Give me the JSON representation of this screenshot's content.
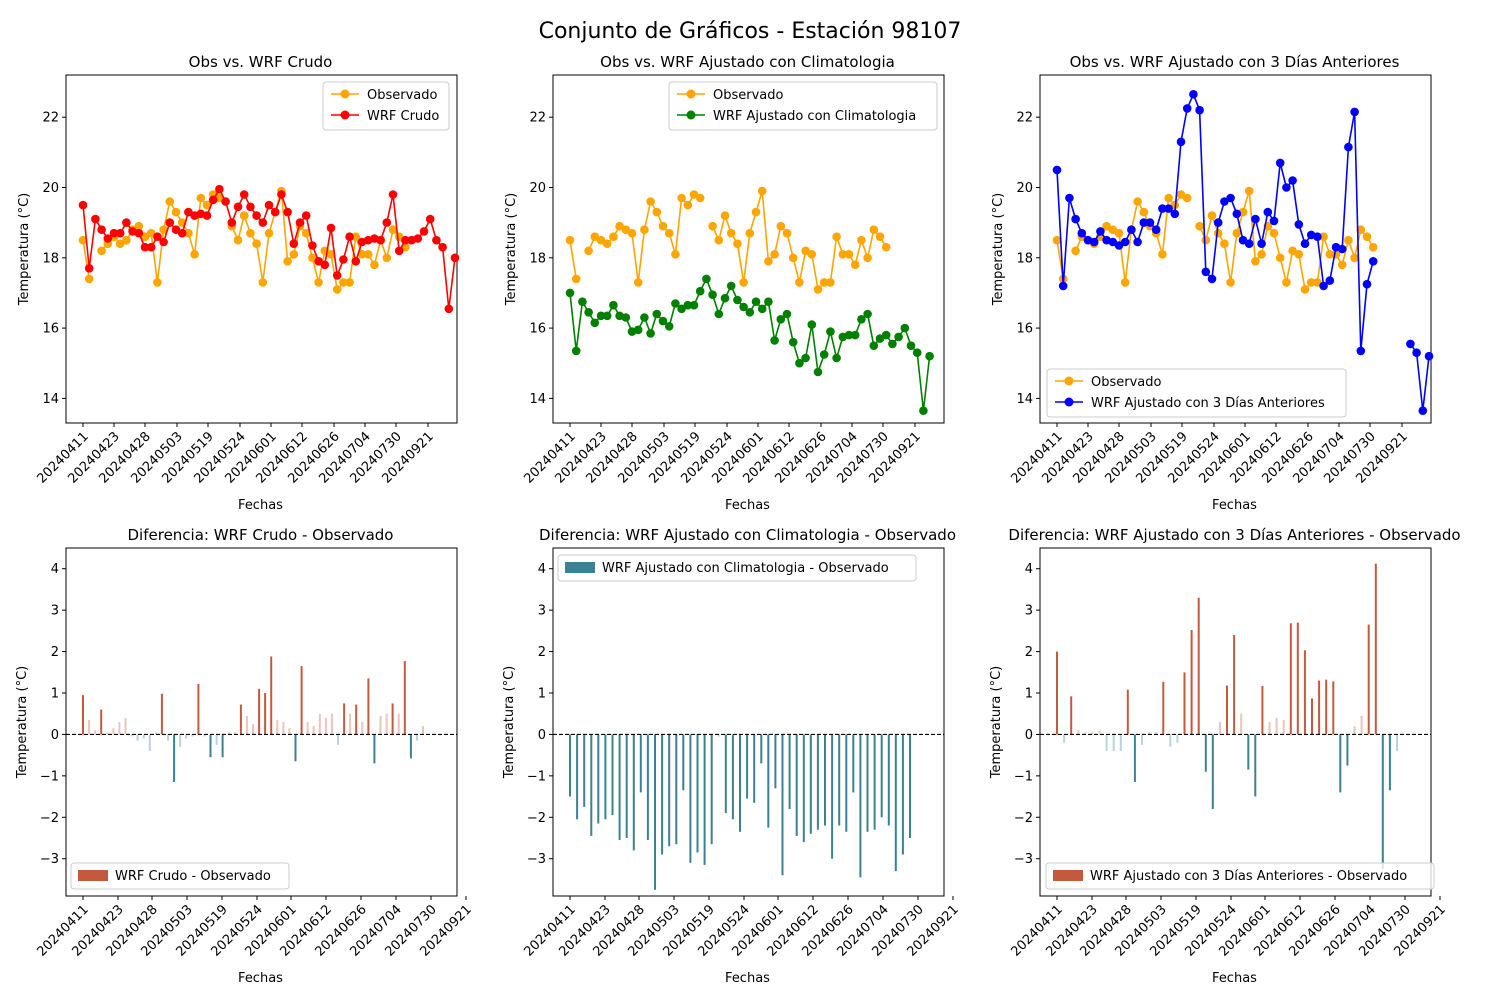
{
  "suptitle": "Conjunto de Gráficos - Estación 98107",
  "date_ticks": [
    "20240411",
    "20240423",
    "20240428",
    "20240503",
    "20240519",
    "20240524",
    "20240601",
    "20240612",
    "20240626",
    "20240704",
    "20240730",
    "20240921"
  ],
  "colors": {
    "observado": "#ffa500",
    "wrf_crudo": "#ff0000",
    "wrf_clim": "#008000",
    "wrf_3d": "#0000ff",
    "bar_neg": "#3b8195",
    "bar_pos": "#c45a3d",
    "zero_line": "#000000"
  },
  "chart_data": [
    {
      "type": "line",
      "title": "Obs vs. WRF Crudo",
      "xlabel": "Fechas",
      "ylabel": "Temperatura (°C)",
      "ylim": [
        13.3,
        23.2
      ],
      "yticks": [
        14,
        16,
        18,
        20,
        22
      ],
      "legend_position": "top-right",
      "series": [
        {
          "name": "Observado",
          "color": "#ffa500",
          "values": [
            18.5,
            17.4,
            null,
            18.2,
            18.4,
            18.6,
            18.4,
            18.5,
            18.8,
            18.9,
            18.6,
            18.7,
            17.3,
            18.8,
            19.6,
            19.3,
            19.0,
            18.7,
            18.1,
            19.7,
            19.5,
            19.8,
            19.7,
            null,
            18.9,
            18.5,
            19.2,
            18.7,
            18.4,
            17.3,
            18.7,
            19.3,
            19.9,
            17.9,
            18.1,
            18.9,
            18.7,
            18.0,
            17.3,
            18.2,
            18.1,
            17.1,
            17.3,
            17.3,
            18.6,
            18.1,
            18.1,
            17.8,
            18.5,
            18.0,
            18.8,
            18.6,
            18.3,
            null,
            null,
            null,
            null,
            null,
            null,
            null
          ]
        },
        {
          "name": "WRF Crudo",
          "color": "#ff0000",
          "values": [
            19.5,
            17.7,
            19.1,
            18.8,
            18.55,
            18.7,
            18.7,
            19.0,
            18.75,
            18.7,
            18.3,
            18.3,
            18.6,
            18.45,
            19.0,
            18.8,
            18.7,
            19.3,
            19.2,
            19.25,
            19.2,
            19.65,
            19.95,
            19.6,
            19.0,
            19.45,
            19.8,
            19.45,
            19.2,
            19.0,
            19.5,
            19.3,
            19.8,
            19.3,
            18.4,
            19.0,
            19.2,
            18.35,
            17.9,
            17.8,
            18.85,
            17.5,
            17.95,
            18.6,
            17.9,
            18.45,
            18.5,
            18.55,
            18.5,
            19.0,
            19.8,
            18.2,
            18.5,
            18.5,
            18.55,
            18.75,
            19.1,
            18.5,
            18.3,
            16.55,
            18.0
          ]
        }
      ]
    },
    {
      "type": "line",
      "title": "Obs vs. WRF Ajustado con Climatologia",
      "xlabel": "Fechas",
      "ylabel": "Temperatura (°C)",
      "ylim": [
        13.3,
        23.2
      ],
      "yticks": [
        14,
        16,
        18,
        20,
        22
      ],
      "legend_position": "top-center",
      "series": [
        {
          "name": "Observado",
          "color": "#ffa500",
          "values": [
            18.5,
            17.4,
            null,
            18.2,
            18.6,
            18.5,
            18.4,
            18.6,
            18.9,
            18.8,
            18.7,
            17.3,
            18.8,
            19.6,
            19.3,
            18.9,
            18.7,
            18.1,
            19.7,
            19.5,
            19.8,
            19.7,
            null,
            18.9,
            18.5,
            19.2,
            18.7,
            18.4,
            17.3,
            18.7,
            19.3,
            19.9,
            17.9,
            18.1,
            18.9,
            18.7,
            18.0,
            17.3,
            18.2,
            18.1,
            17.1,
            17.3,
            17.3,
            18.6,
            18.1,
            18.1,
            17.8,
            18.5,
            18.0,
            18.8,
            18.6,
            18.3,
            null,
            null,
            null,
            null,
            null,
            null,
            null
          ]
        },
        {
          "name": "WRF Ajustado con Climatologia",
          "color": "#008000",
          "values": [
            17.0,
            15.35,
            16.75,
            16.45,
            16.15,
            16.35,
            16.35,
            16.65,
            16.35,
            16.3,
            15.9,
            15.95,
            16.3,
            15.85,
            16.4,
            16.2,
            16.05,
            16.7,
            16.55,
            16.65,
            16.65,
            17.05,
            17.4,
            16.95,
            16.4,
            16.85,
            17.2,
            16.8,
            16.6,
            16.45,
            16.75,
            16.55,
            16.75,
            15.65,
            16.25,
            16.4,
            15.6,
            15.0,
            15.15,
            16.1,
            14.75,
            15.25,
            15.9,
            15.15,
            15.75,
            15.8,
            15.8,
            16.25,
            16.4,
            15.5,
            15.7,
            15.8,
            15.55,
            15.75,
            16.0,
            15.5,
            15.3,
            13.65,
            15.2
          ]
        }
      ]
    },
    {
      "type": "line",
      "title": "Obs vs. WRF Ajustado con 3 Días Anteriores",
      "xlabel": "Fechas",
      "ylabel": "Temperatura (°C)",
      "ylim": [
        13.3,
        23.2
      ],
      "yticks": [
        14,
        16,
        18,
        20,
        22
      ],
      "legend_position": "bottom-left",
      "series": [
        {
          "name": "Observado",
          "color": "#ffa500",
          "values": [
            18.5,
            17.4,
            null,
            18.2,
            18.6,
            18.5,
            18.4,
            18.6,
            18.9,
            18.8,
            18.7,
            17.3,
            18.8,
            19.6,
            19.3,
            18.9,
            18.7,
            18.1,
            19.7,
            19.5,
            19.8,
            19.7,
            null,
            18.9,
            18.5,
            19.2,
            18.7,
            18.4,
            17.3,
            18.7,
            19.3,
            19.9,
            17.9,
            18.1,
            18.9,
            18.7,
            18.0,
            17.3,
            18.2,
            18.1,
            17.1,
            17.3,
            17.3,
            18.6,
            18.1,
            18.1,
            17.8,
            18.5,
            18.0,
            18.8,
            18.6,
            18.3,
            null,
            null,
            null,
            null,
            null,
            null,
            null
          ]
        },
        {
          "name": "WRF Ajustado con 3 Días Anteriores",
          "color": "#0000ff",
          "values": [
            20.5,
            17.2,
            19.7,
            19.1,
            18.7,
            18.5,
            18.45,
            18.75,
            18.5,
            18.45,
            18.35,
            18.45,
            18.8,
            18.45,
            19.0,
            19.0,
            18.8,
            19.4,
            19.4,
            19.25,
            21.3,
            22.25,
            22.65,
            22.2,
            17.6,
            17.4,
            19.0,
            19.6,
            19.7,
            19.25,
            18.5,
            18.4,
            19.1,
            18.4,
            19.3,
            19.05,
            20.7,
            20.0,
            20.2,
            18.95,
            18.4,
            18.65,
            18.6,
            17.2,
            17.35,
            18.3,
            18.25,
            21.15,
            22.15,
            15.35,
            17.25,
            17.9,
            null,
            null,
            null,
            null,
            null,
            15.55,
            15.3,
            13.65,
            15.2
          ]
        }
      ]
    },
    {
      "type": "bar",
      "title": "Diferencia: WRF Crudo - Observado",
      "xlabel": "Fechas",
      "ylabel": "Temperatura (°C)",
      "ylim": [
        -3.9,
        4.5
      ],
      "yticks": [
        -3,
        -2,
        -1,
        0,
        1,
        2,
        3,
        4
      ],
      "legend_position": "bottom-left",
      "series": [
        {
          "name": "WRF Crudo - Observado",
          "color": "#c45a3d"
        }
      ],
      "values": [
        0.95,
        0.35,
        0.1,
        0.6,
        0.05,
        0.15,
        0.3,
        0.4,
        -0.05,
        -0.15,
        -0.1,
        -0.4,
        0.05,
        0.98,
        -0.15,
        -1.15,
        -0.3,
        -0.1,
        -0.05,
        1.22,
        -0.05,
        -0.55,
        -0.25,
        -0.55,
        0.05,
        0.05,
        0.72,
        0.45,
        0.25,
        1.1,
        1.0,
        1.88,
        0.35,
        0.3,
        0.15,
        -0.65,
        1.65,
        0.3,
        0.2,
        0.5,
        0.4,
        0.5,
        -0.25,
        0.75,
        0.5,
        0.72,
        0.3,
        1.35,
        -0.7,
        0.45,
        0.5,
        0.75,
        0.5,
        1.77,
        -0.58,
        -0.15,
        0.2
      ]
    },
    {
      "type": "bar",
      "title": "Diferencia: WRF Ajustado con Climatologia - Observado",
      "xlabel": "Fechas",
      "ylabel": "Temperatura (°C)",
      "ylim": [
        -3.9,
        4.5
      ],
      "yticks": [
        -3,
        -2,
        -1,
        0,
        1,
        2,
        3,
        4
      ],
      "legend_position": "top-left",
      "series": [
        {
          "name": "WRF Ajustado con Climatologia - Observado",
          "color": "#3b8195"
        }
      ],
      "values": [
        -1.5,
        -2.05,
        -1.75,
        -2.45,
        -2.15,
        -2.05,
        -1.95,
        -2.55,
        -2.5,
        -2.8,
        -1.4,
        -2.55,
        -3.75,
        -2.9,
        -2.7,
        -2.65,
        -1.35,
        -3.1,
        -2.85,
        -3.15,
        -2.65,
        -0.05,
        -1.9,
        -2.05,
        -2.35,
        -1.55,
        -1.65,
        -0.7,
        -2.25,
        -1.3,
        -3.4,
        -1.8,
        -2.45,
        -2.6,
        -2.4,
        -2.3,
        -2.2,
        -3.0,
        -2.2,
        -2.35,
        -1.4,
        -3.45,
        -2.35,
        -2.3,
        -2.0,
        -2.2,
        -3.3,
        -2.9,
        -2.5
      ]
    },
    {
      "type": "bar",
      "title": "Diferencia: WRF Ajustado con 3 Días Anteriores - Observado",
      "xlabel": "Fechas",
      "ylabel": "Temperatura (°C)",
      "ylim": [
        -3.9,
        4.5
      ],
      "yticks": [
        -3,
        -2,
        -1,
        0,
        1,
        2,
        3,
        4
      ],
      "legend_position": "bottom-center",
      "series": [
        {
          "name": "WRF Ajustado con 3 Días Anteriores - Observado",
          "color": "#c45a3d"
        }
      ],
      "values": [
        2.0,
        -0.2,
        0.92,
        0.1,
        0.05,
        0.05,
        0.1,
        -0.4,
        -0.4,
        -0.4,
        1.08,
        -1.15,
        -0.25,
        0.05,
        0.05,
        1.27,
        -0.3,
        -0.2,
        1.5,
        2.52,
        3.3,
        -0.9,
        -1.8,
        0.3,
        1.18,
        2.4,
        0.5,
        -0.85,
        -1.5,
        1.17,
        0.3,
        0.4,
        0.35,
        2.68,
        2.7,
        2.03,
        0.87,
        1.3,
        1.32,
        1.28,
        -1.4,
        -0.75,
        0.2,
        0.45,
        2.65,
        4.12,
        -3.25,
        -1.35,
        -0.4
      ]
    }
  ]
}
